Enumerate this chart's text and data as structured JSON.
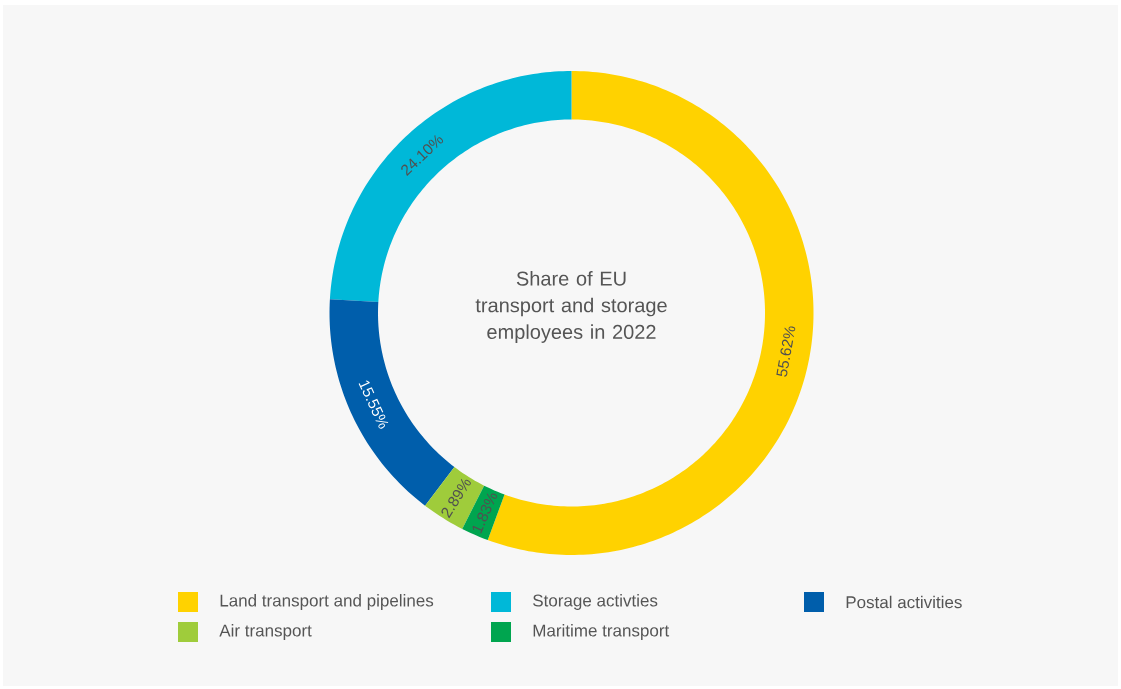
{
  "chart_data": {
    "type": "donut",
    "title": "Share of EU transport and storage employees in 2022",
    "categories": [
      "Land transport and pipelines",
      "Storage activties",
      "Postal activities",
      "Air transport",
      "Maritime transport"
    ],
    "values": [
      55.62,
      24.1,
      15.55,
      2.89,
      1.83
    ],
    "value_labels": [
      "55.62%",
      "24.10%",
      "15.55%",
      "2.89%",
      "1.83%"
    ],
    "colors": [
      "#ffd200",
      "#00b8d8",
      "#005eab",
      "#9fcc3b",
      "#00a54f"
    ],
    "legend": "bottom"
  }
}
